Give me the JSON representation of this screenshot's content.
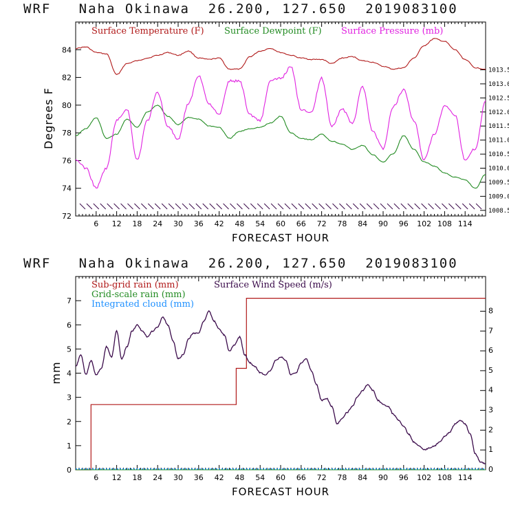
{
  "chart_data": [
    {
      "type": "line",
      "title": "WRF   Naha Okinawa  26.200, 127.650  2019083100",
      "xlabel": "FORECAST HOUR",
      "ylabel": "Degrees F",
      "x_ticks": [
        "6",
        "12",
        "18",
        "24",
        "30",
        "36",
        "42",
        "48",
        "54",
        "60",
        "66",
        "72",
        "78",
        "84",
        "90",
        "96",
        "102",
        "108",
        "114"
      ],
      "xlim": [
        0,
        120
      ],
      "ylim": [
        72,
        86
      ],
      "y_ticks": [
        "72",
        "74",
        "76",
        "78",
        "80",
        "82",
        "84"
      ],
      "y2_ticks": [
        "1008.5",
        "1009.0",
        "1009.5",
        "1010.0",
        "1010.5",
        "1011.0",
        "1011.5",
        "1012.0",
        "1012.5",
        "1013.0",
        "1013.5"
      ],
      "y2lim": [
        1008.3,
        1015.2
      ],
      "x": [
        0,
        3,
        6,
        9,
        12,
        15,
        18,
        21,
        24,
        27,
        30,
        33,
        36,
        39,
        42,
        45,
        48,
        51,
        54,
        57,
        60,
        63,
        66,
        69,
        72,
        75,
        78,
        81,
        84,
        87,
        90,
        93,
        96,
        99,
        102,
        105,
        108,
        111,
        114,
        117,
        120
      ],
      "series": [
        {
          "name": "Surface Temperature (F)",
          "color": "#b01818",
          "values": [
            84.1,
            84.2,
            83.8,
            83.7,
            82.2,
            83.0,
            83.2,
            83.4,
            83.6,
            83.8,
            83.6,
            83.9,
            83.4,
            83.3,
            83.4,
            82.6,
            82.6,
            83.5,
            83.9,
            84.1,
            83.8,
            83.6,
            83.4,
            83.3,
            83.3,
            83.0,
            83.4,
            83.5,
            83.2,
            83.1,
            82.8,
            82.6,
            82.7,
            83.4,
            84.3,
            84.8,
            84.6,
            84.0,
            83.3,
            82.7,
            82.6
          ]
        },
        {
          "name": "Surface Dewpoint (F)",
          "color": "#228b22",
          "values": [
            77.8,
            78.3,
            79.1,
            77.6,
            77.9,
            79.0,
            78.4,
            79.5,
            80.0,
            79.2,
            78.6,
            79.1,
            79.0,
            78.5,
            78.4,
            77.6,
            78.1,
            78.3,
            78.4,
            78.7,
            79.2,
            78.0,
            77.6,
            77.5,
            77.9,
            77.4,
            77.2,
            76.8,
            77.1,
            76.4,
            75.9,
            76.5,
            77.8,
            76.8,
            75.9,
            75.6,
            75.1,
            74.8,
            74.6,
            74.0,
            75.0
          ]
        },
        {
          "name": "Surface Pressure (mb)",
          "color": "#e020e0",
          "values": [
            1010.3,
            1010.0,
            1009.3,
            1010.0,
            1011.7,
            1012.1,
            1010.3,
            1011.7,
            1012.7,
            1011.5,
            1011.0,
            1012.3,
            1013.3,
            1012.3,
            1011.9,
            1013.1,
            1013.1,
            1011.9,
            1011.7,
            1013.1,
            1013.2,
            1013.6,
            1012.1,
            1012.0,
            1013.2,
            1011.5,
            1012.1,
            1011.6,
            1012.9,
            1011.3,
            1010.7,
            1012.2,
            1012.8,
            1011.7,
            1010.3,
            1011.2,
            1012.2,
            1011.9,
            1010.3,
            1010.7,
            1012.4
          ]
        }
      ]
    },
    {
      "type": "line",
      "title": "WRF   Naha Okinawa  26.200, 127.650  2019083100",
      "xlabel": "FORECAST HOUR",
      "ylabel": "mm",
      "x_ticks": [
        "6",
        "12",
        "18",
        "24",
        "30",
        "36",
        "42",
        "48",
        "54",
        "60",
        "66",
        "72",
        "78",
        "84",
        "90",
        "96",
        "102",
        "108",
        "114"
      ],
      "xlim": [
        0,
        120
      ],
      "ylim": [
        0,
        8
      ],
      "y_ticks": [
        "0",
        "1",
        "2",
        "3",
        "4",
        "5",
        "6",
        "7"
      ],
      "y2_ticks": [
        "0",
        "1",
        "2",
        "3",
        "4",
        "5",
        "6",
        "7",
        "8"
      ],
      "y2lim": [
        0,
        9.75
      ],
      "sub_grid_rain": {
        "name": "Sub-grid rain (mm)",
        "color": "#b01818",
        "steps": [
          [
            0,
            0
          ],
          [
            4.5,
            0
          ],
          [
            4.5,
            2.7
          ],
          [
            47,
            2.7
          ],
          [
            47,
            4.2
          ],
          [
            50,
            4.2
          ],
          [
            50,
            7.1
          ],
          [
            120,
            7.1
          ]
        ]
      },
      "grid_scale_rain": {
        "name": "Grid-scale rain (mm)",
        "color": "#228b22",
        "values": [
          0,
          0
        ]
      },
      "integrated_cloud": {
        "name": "Integrated cloud (mm)",
        "color": "#1e90ff",
        "values": [
          0,
          0
        ]
      },
      "wind_speed": {
        "name": "Surface Wind Speed (m/s)",
        "color": "#3a0a4a",
        "x": [
          0,
          1.5,
          3,
          4.5,
          6,
          7.5,
          9,
          10.5,
          12,
          13.5,
          15,
          16.5,
          18,
          19.5,
          21,
          22.5,
          24,
          25.5,
          27,
          28.5,
          30,
          31.5,
          33,
          34.5,
          36,
          37.5,
          39,
          40.5,
          42,
          43.5,
          45,
          46.5,
          48,
          49.5,
          51,
          52.5,
          54,
          55.5,
          57,
          58.5,
          60,
          61.5,
          63,
          64.5,
          66,
          67.5,
          69,
          70.5,
          72,
          73.5,
          75,
          76.5,
          78,
          79.5,
          81,
          82.5,
          84,
          85.5,
          87,
          88.5,
          90,
          91.5,
          93,
          94.5,
          96,
          97.5,
          99,
          100.5,
          102,
          103.5,
          105,
          106.5,
          108,
          109.5,
          111,
          112.5,
          114,
          115.5,
          117,
          118.5,
          120
        ],
        "values": [
          5.2,
          5.8,
          4.8,
          5.5,
          4.8,
          5.1,
          6.2,
          5.7,
          7.0,
          5.6,
          6.2,
          7.0,
          7.3,
          7.0,
          6.7,
          7.0,
          7.2,
          7.7,
          7.3,
          6.5,
          5.6,
          5.8,
          6.6,
          6.9,
          6.9,
          7.5,
          8.0,
          7.5,
          7.1,
          6.8,
          6.0,
          6.3,
          6.7,
          5.8,
          5.4,
          5.2,
          4.9,
          4.8,
          5.0,
          5.5,
          5.7,
          5.5,
          4.8,
          4.9,
          5.4,
          5.6,
          5.0,
          4.3,
          3.5,
          3.6,
          3.2,
          2.3,
          2.6,
          2.9,
          3.2,
          3.7,
          4.0,
          4.3,
          4.0,
          3.5,
          3.3,
          3.2,
          2.8,
          2.5,
          2.2,
          1.8,
          1.4,
          1.2,
          1.0,
          1.1,
          1.2,
          1.4,
          1.7,
          1.9,
          2.3,
          2.5,
          2.3,
          1.8,
          0.8,
          0.4,
          0.3
        ]
      }
    }
  ]
}
